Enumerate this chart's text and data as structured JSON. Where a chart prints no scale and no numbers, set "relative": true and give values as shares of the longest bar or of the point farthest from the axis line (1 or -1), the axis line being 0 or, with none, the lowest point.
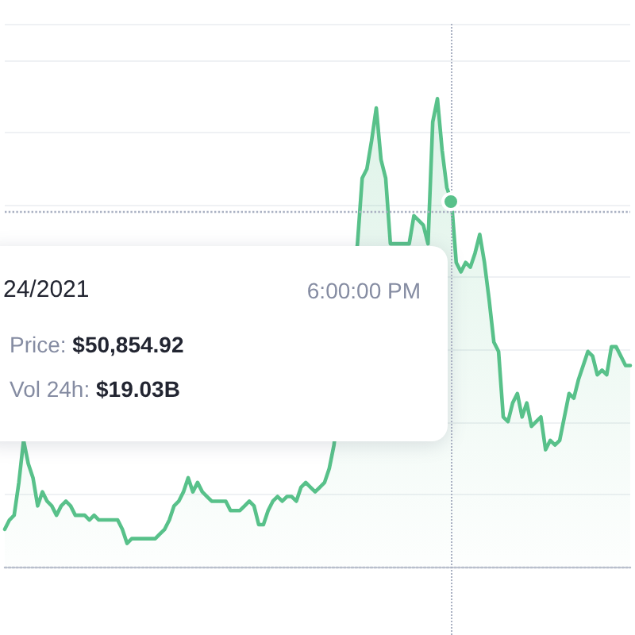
{
  "chart_data": {
    "type": "area",
    "relative": true,
    "categories": [
      null,
      null,
      null,
      null,
      null,
      null,
      null,
      null,
      null,
      null,
      null,
      null,
      null,
      null,
      null,
      null,
      null,
      null,
      null,
      null,
      null,
      null,
      null,
      null,
      null,
      null,
      null,
      null,
      null,
      null,
      null,
      null,
      null,
      null,
      null,
      null,
      null,
      null,
      null,
      null,
      null,
      null,
      null,
      null,
      null,
      null,
      null,
      null,
      null,
      null,
      null,
      null,
      null,
      null,
      null,
      null,
      null,
      null,
      null,
      null,
      null,
      null,
      null,
      null,
      null,
      null,
      null,
      null,
      null,
      null,
      null,
      null,
      null,
      null,
      null,
      null,
      null,
      null,
      null,
      null,
      null,
      null,
      null,
      null,
      null,
      null,
      null,
      null,
      null,
      null,
      null,
      null,
      null,
      null,
      null,
      null,
      null,
      null,
      null,
      null,
      null,
      null,
      null,
      null,
      null,
      null,
      null,
      null,
      null,
      null,
      null,
      null,
      null,
      null,
      null,
      null,
      null,
      null,
      null,
      null,
      null,
      null,
      null,
      null,
      null,
      null,
      null,
      null,
      null,
      null,
      null,
      null,
      null,
      null
    ],
    "values": [
      0.08,
      0.1,
      0.11,
      0.18,
      0.27,
      0.22,
      0.19,
      0.13,
      0.16,
      0.14,
      0.13,
      0.11,
      0.13,
      0.14,
      0.13,
      0.11,
      0.11,
      0.11,
      0.1,
      0.11,
      0.1,
      0.1,
      0.1,
      0.1,
      0.1,
      0.08,
      0.05,
      0.06,
      0.06,
      0.06,
      0.06,
      0.06,
      0.06,
      0.07,
      0.08,
      0.1,
      0.13,
      0.14,
      0.16,
      0.19,
      0.16,
      0.18,
      0.16,
      0.15,
      0.14,
      0.14,
      0.14,
      0.14,
      0.12,
      0.12,
      0.12,
      0.13,
      0.14,
      0.13,
      0.09,
      0.09,
      0.12,
      0.14,
      0.15,
      0.14,
      0.15,
      0.15,
      0.14,
      0.17,
      0.18,
      0.17,
      0.16,
      0.17,
      0.18,
      0.21,
      0.26,
      null,
      null,
      null,
      null,
      0.69,
      0.83,
      0.85,
      0.91,
      0.98,
      0.87,
      0.83,
      0.69,
      null,
      null,
      null,
      0.69,
      0.75,
      0.74,
      0.73,
      0.69,
      0.95,
      1.0,
      0.89,
      0.81,
      0.78,
      0.65,
      0.63,
      0.65,
      0.64,
      0.67,
      0.71,
      0.65,
      0.57,
      0.48,
      0.46,
      0.32,
      0.31,
      0.35,
      0.37,
      0.32,
      0.35,
      0.3,
      0.31,
      0.32,
      0.25,
      0.27,
      0.26,
      0.27,
      0.32,
      0.37,
      0.36,
      0.4,
      0.43,
      0.46,
      0.45,
      0.41,
      0.42,
      0.41,
      0.47,
      0.47,
      0.45,
      0.43,
      0.43
    ],
    "color": "#58c18a",
    "grid": "y",
    "ref_lines": [
      {
        "axis": "y",
        "value": 0.76,
        "line_style": "dotted",
        "color": "#a9b0c2"
      }
    ],
    "annotations": [
      "24/2021",
      "6:00:00 PM",
      "Price: $50,854.92",
      "Vol 24h: $19.03B"
    ]
  }
}
